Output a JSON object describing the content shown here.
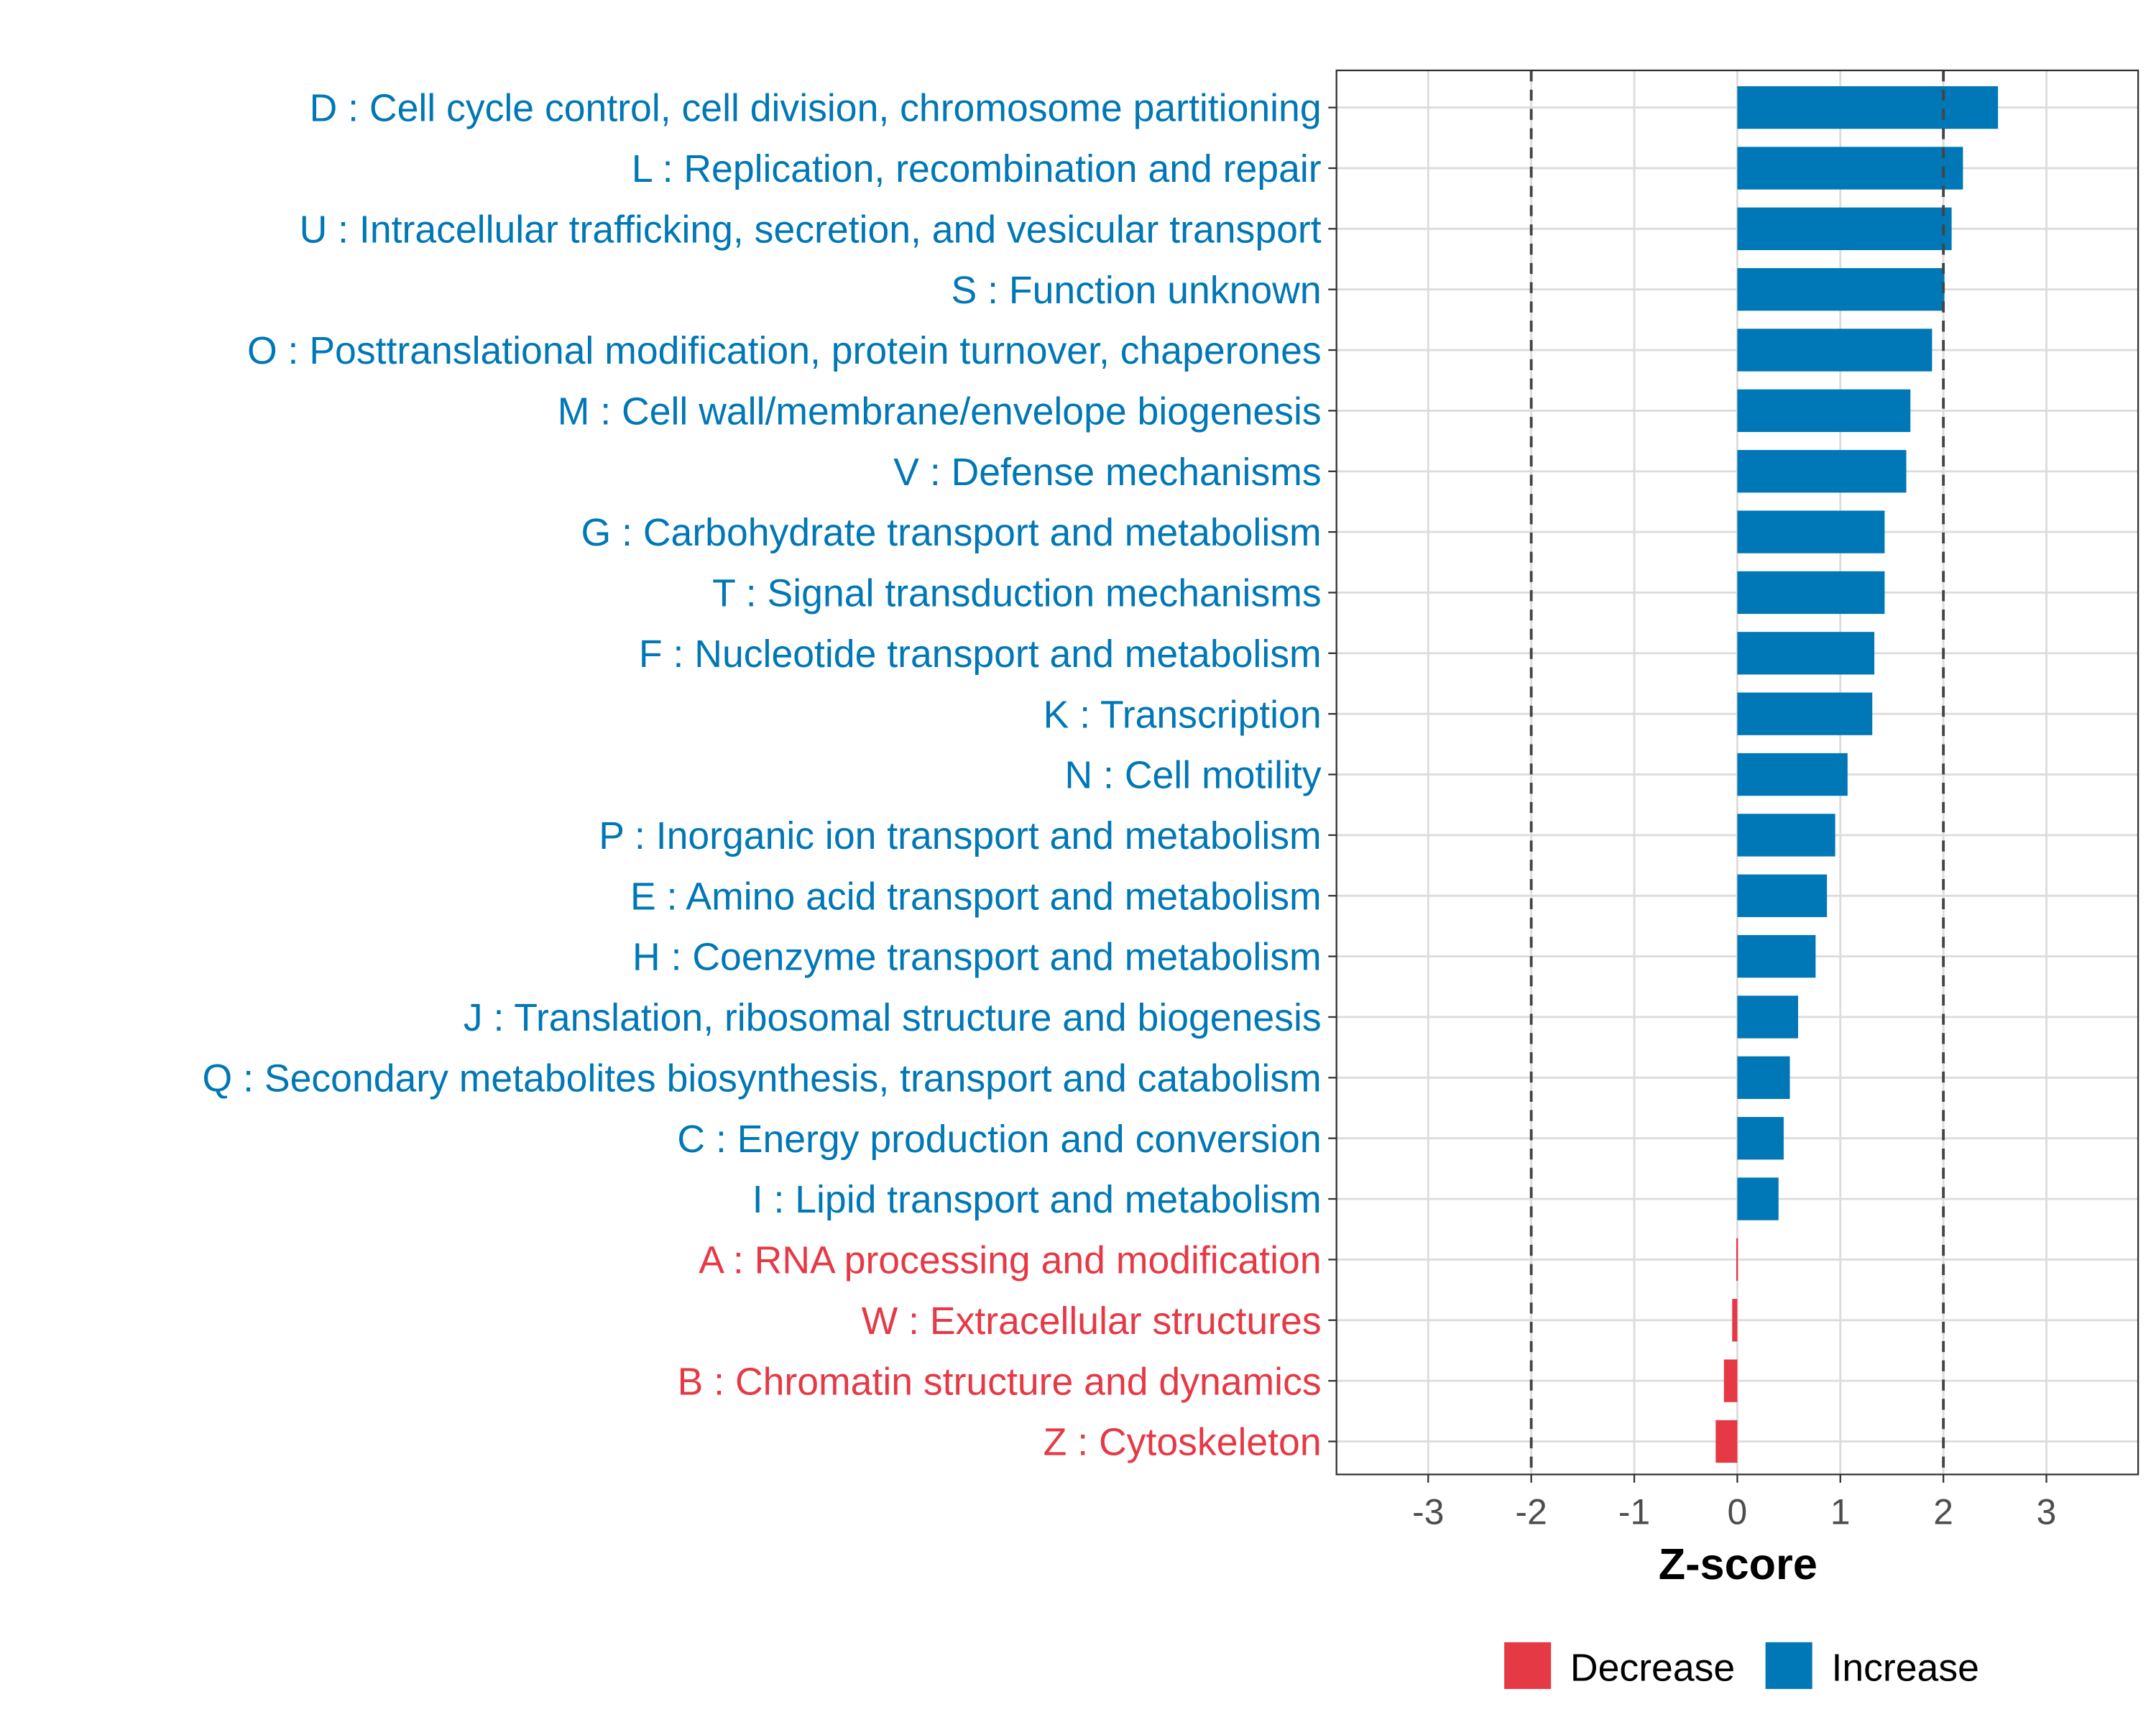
{
  "chart_data": {
    "type": "bar",
    "orientation": "horizontal",
    "title": "",
    "xlabel": "Z-score",
    "ylabel": "",
    "xlim": [
      -3.89,
      3.89
    ],
    "xticks": [
      -3,
      -2,
      -1,
      0,
      1,
      2,
      3
    ],
    "xtick_labels": [
      "-3",
      "-2",
      "-1",
      "0",
      "1",
      "2",
      "3"
    ],
    "reference_lines": [
      -2,
      2
    ],
    "grid": true,
    "legend": {
      "placement": "bottom",
      "entries": [
        {
          "label": "Decrease",
          "color": "#e63946"
        },
        {
          "label": "Increase",
          "color": "#0077b6"
        }
      ]
    },
    "colors": {
      "Decrease": "#e63946",
      "Increase": "#0077b6"
    },
    "categories": [
      "D : Cell cycle control, cell division, chromosome partitioning",
      "L : Replication, recombination and repair",
      "U : Intracellular trafficking, secretion, and vesicular transport",
      "S : Function unknown",
      "O : Posttranslational modification, protein turnover, chaperones",
      "M : Cell wall/membrane/envelope biogenesis",
      "V : Defense mechanisms",
      "G : Carbohydrate transport and metabolism",
      "T : Signal transduction mechanisms",
      "F : Nucleotide transport and metabolism",
      "K : Transcription",
      "N : Cell motility",
      "P : Inorganic ion transport and metabolism",
      "E : Amino acid transport and metabolism",
      "H : Coenzyme transport and metabolism",
      "J : Translation, ribosomal structure and biogenesis",
      "Q : Secondary metabolites biosynthesis, transport and catabolism",
      "C : Energy production and conversion",
      "I : Lipid transport and metabolism",
      "A : RNA processing and modification",
      "W : Extracellular structures",
      "B : Chromatin structure and dynamics",
      "Z : Cytoskeleton"
    ],
    "values": [
      2.53,
      2.19,
      2.08,
      2.01,
      1.89,
      1.68,
      1.64,
      1.43,
      1.43,
      1.33,
      1.31,
      1.07,
      0.95,
      0.87,
      0.76,
      0.59,
      0.51,
      0.45,
      0.4,
      -0.01,
      -0.05,
      -0.13,
      -0.21
    ]
  }
}
